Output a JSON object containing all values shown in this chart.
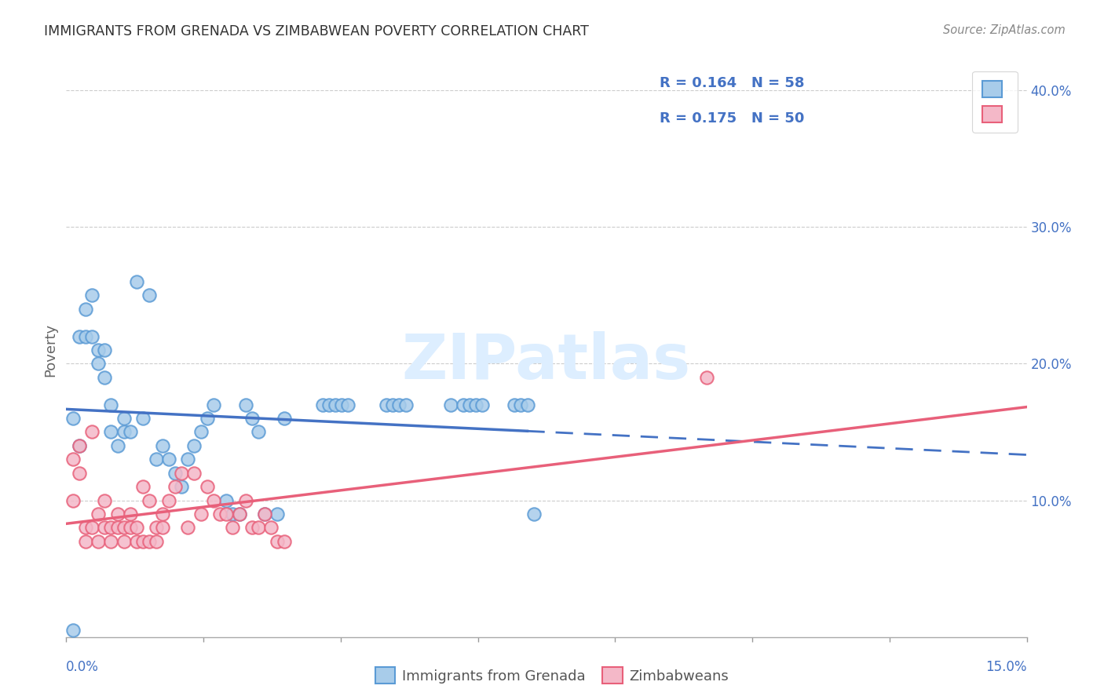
{
  "title": "IMMIGRANTS FROM GRENADA VS ZIMBABWEAN POVERTY CORRELATION CHART",
  "source": "Source: ZipAtlas.com",
  "ylabel": "Poverty",
  "xlim": [
    0.0,
    0.15
  ],
  "ylim": [
    0.0,
    0.42
  ],
  "yticks": [
    0.1,
    0.2,
    0.3,
    0.4
  ],
  "ytick_labels": [
    "10.0%",
    "20.0%",
    "30.0%",
    "40.0%"
  ],
  "series1_label": "Immigrants from Grenada",
  "series2_label": "Zimbabweans",
  "R1": 0.164,
  "N1": 58,
  "R2": 0.175,
  "N2": 50,
  "color_blue_fill": "#A8CCEA",
  "color_blue_edge": "#5B9BD5",
  "color_pink_fill": "#F4B8C8",
  "color_pink_edge": "#E8607A",
  "color_blue_line": "#4472C4",
  "color_pink_line": "#E8607A",
  "color_axis_text": "#4472C4",
  "color_grid": "#CCCCCC",
  "watermark_color": "#DDEEFF",
  "blue_x": [
    0.001,
    0.002,
    0.002,
    0.003,
    0.003,
    0.004,
    0.004,
    0.005,
    0.005,
    0.006,
    0.006,
    0.007,
    0.007,
    0.008,
    0.009,
    0.009,
    0.01,
    0.011,
    0.012,
    0.013,
    0.014,
    0.015,
    0.016,
    0.017,
    0.018,
    0.019,
    0.02,
    0.021,
    0.022,
    0.023,
    0.025,
    0.026,
    0.027,
    0.028,
    0.029,
    0.03,
    0.031,
    0.033,
    0.034,
    0.04,
    0.041,
    0.042,
    0.043,
    0.044,
    0.05,
    0.051,
    0.052,
    0.053,
    0.06,
    0.062,
    0.063,
    0.064,
    0.065,
    0.07,
    0.071,
    0.001,
    0.072,
    0.073
  ],
  "blue_y": [
    0.16,
    0.14,
    0.22,
    0.22,
    0.24,
    0.22,
    0.25,
    0.21,
    0.2,
    0.21,
    0.19,
    0.15,
    0.17,
    0.14,
    0.15,
    0.16,
    0.15,
    0.26,
    0.16,
    0.25,
    0.13,
    0.14,
    0.13,
    0.12,
    0.11,
    0.13,
    0.14,
    0.15,
    0.16,
    0.17,
    0.1,
    0.09,
    0.09,
    0.17,
    0.16,
    0.15,
    0.09,
    0.09,
    0.16,
    0.17,
    0.17,
    0.17,
    0.17,
    0.17,
    0.17,
    0.17,
    0.17,
    0.17,
    0.17,
    0.17,
    0.17,
    0.17,
    0.17,
    0.17,
    0.17,
    0.005,
    0.17,
    0.09
  ],
  "pink_x": [
    0.001,
    0.001,
    0.002,
    0.002,
    0.003,
    0.003,
    0.004,
    0.004,
    0.005,
    0.005,
    0.006,
    0.006,
    0.007,
    0.007,
    0.008,
    0.008,
    0.009,
    0.009,
    0.01,
    0.01,
    0.011,
    0.011,
    0.012,
    0.012,
    0.013,
    0.013,
    0.014,
    0.014,
    0.015,
    0.015,
    0.016,
    0.017,
    0.018,
    0.019,
    0.02,
    0.021,
    0.022,
    0.023,
    0.024,
    0.025,
    0.026,
    0.027,
    0.028,
    0.029,
    0.03,
    0.031,
    0.032,
    0.033,
    0.034,
    0.1
  ],
  "pink_y": [
    0.13,
    0.1,
    0.14,
    0.12,
    0.08,
    0.07,
    0.15,
    0.08,
    0.09,
    0.07,
    0.08,
    0.1,
    0.07,
    0.08,
    0.09,
    0.08,
    0.07,
    0.08,
    0.09,
    0.08,
    0.07,
    0.08,
    0.11,
    0.07,
    0.07,
    0.1,
    0.08,
    0.07,
    0.09,
    0.08,
    0.1,
    0.11,
    0.12,
    0.08,
    0.12,
    0.09,
    0.11,
    0.1,
    0.09,
    0.09,
    0.08,
    0.09,
    0.1,
    0.08,
    0.08,
    0.09,
    0.08,
    0.07,
    0.07,
    0.19
  ]
}
